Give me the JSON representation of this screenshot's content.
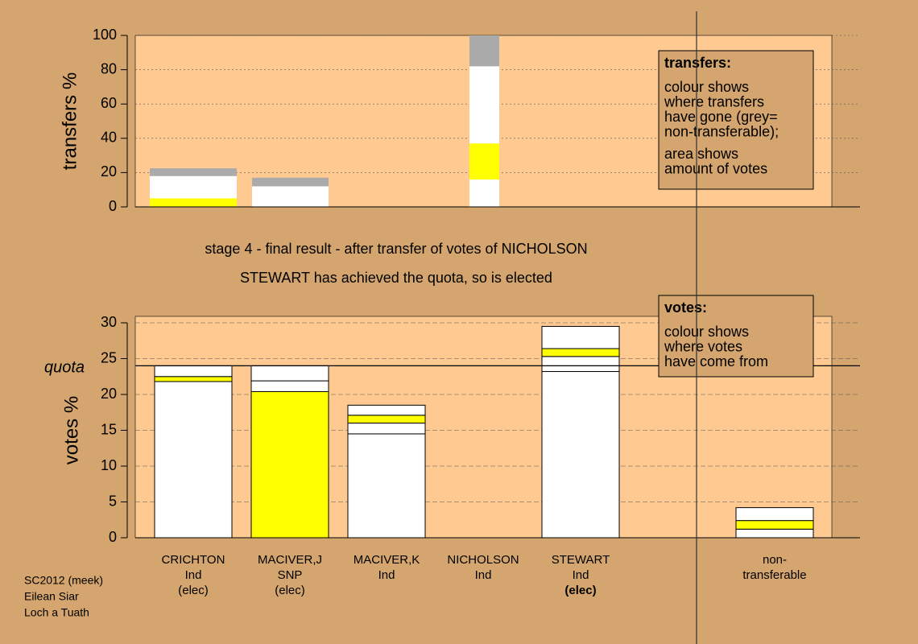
{
  "chart_data": [
    {
      "type": "stacked-bar",
      "ylabel": "transfers %",
      "ylim": [
        0,
        100
      ],
      "yticks": [
        0,
        20,
        40,
        60,
        80,
        100
      ],
      "grid": true,
      "stacks": [
        {
          "segments": [
            {
              "color": "#ffff00",
              "value": 5
            },
            {
              "color": "#ffffff",
              "value": 13
            },
            {
              "color": "#aaaaaa",
              "value": 4.5
            }
          ]
        },
        {
          "segments": [
            {
              "color": "#ffffff",
              "value": 12
            },
            {
              "color": "#aaaaaa",
              "value": 5
            }
          ]
        },
        {
          "segments": [
            {
              "color": "#ffffff",
              "value": 16
            },
            {
              "color": "#ffff00",
              "value": 21
            },
            {
              "color": "#ffffff",
              "value": 45
            },
            {
              "color": "#aaaaaa",
              "value": 18
            }
          ]
        }
      ],
      "legend": {
        "title": "transfers:",
        "lines": [
          "colour shows",
          "where transfers",
          "have gone (grey=",
          "non-transferable);",
          "area shows",
          "amount of votes"
        ]
      }
    },
    {
      "type": "stacked-bar",
      "ylabel": "votes %",
      "ylim": [
        0,
        30
      ],
      "yticks": [
        0,
        5,
        10,
        15,
        20,
        25,
        30
      ],
      "grid": true,
      "quota": {
        "label": "quota",
        "value": 24
      },
      "categories": [
        [
          "CRICHTON",
          "Ind",
          "(elec)"
        ],
        [
          "MACIVER,J",
          "SNP",
          "(elec)"
        ],
        [
          "MACIVER,K",
          "Ind"
        ],
        [
          "NICHOLSON",
          "Ind"
        ],
        [
          "STEWART",
          "Ind",
          "(elec)"
        ],
        [
          "non-",
          "transferable"
        ]
      ],
      "highlight": 4,
      "stacks": [
        {
          "segments": [
            {
              "color": "#ffffff",
              "value": 21.8
            },
            {
              "color": "#ffff00",
              "value": 0.7
            },
            {
              "color": "#ffffff",
              "value": 1.5
            }
          ]
        },
        {
          "segments": [
            {
              "color": "#ffff00",
              "value": 20.4
            },
            {
              "color": "#ffffff",
              "value": 1.5
            },
            {
              "color": "#ffffff",
              "value": 2.1
            }
          ]
        },
        {
          "segments": [
            {
              "color": "#ffffff",
              "value": 14.5
            },
            {
              "color": "#ffffff",
              "value": 1.5
            },
            {
              "color": "#ffff00",
              "value": 1.1
            },
            {
              "color": "#ffffff",
              "value": 1.4
            }
          ]
        },
        {
          "segments": [
            {
              "color": "#ffffff",
              "value": 0
            }
          ]
        },
        {
          "segments": [
            {
              "color": "#ffffff",
              "value": 23.2
            },
            {
              "color": "#ffffff",
              "value": 2.1
            },
            {
              "color": "#ffff00",
              "value": 1.1
            },
            {
              "color": "#ffffff",
              "value": 3.1
            }
          ]
        },
        {
          "segments": [
            {
              "color": "#ffffff",
              "value": 1.2
            },
            {
              "color": "#ffff00",
              "value": 1.2
            },
            {
              "color": "#ffffff",
              "value": 1.8
            }
          ]
        }
      ],
      "legend": {
        "title": "votes:",
        "lines": [
          "colour shows",
          "where votes",
          "have come from"
        ]
      }
    }
  ],
  "stage_title": "stage 4 - final result - after transfer of votes of NICHOLSON",
  "stage_note": "STEWART has achieved the quota, so is elected",
  "footer": [
    "SC2012 (meek)",
    "Eilean Siar",
    "Loch a Tuath"
  ]
}
